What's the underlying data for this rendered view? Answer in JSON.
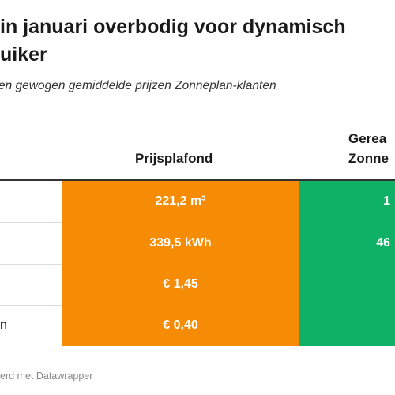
{
  "header": {
    "title": [
      "in januari overbodig voor dynamisch",
      "uiker"
    ],
    "subtitle": "en gewogen gemiddelde prijzen Zonneplan-klanten"
  },
  "table": {
    "columns": [
      "",
      "Prijsplafond",
      [
        "Gerea",
        "Zonne"
      ]
    ],
    "rows": [
      [
        "",
        "221,2 m³",
        "1"
      ],
      [
        "",
        "339,5 kWh",
        "46"
      ],
      [
        "",
        "€ 1,45",
        ""
      ],
      [
        "n",
        "€ 0,40",
        ""
      ]
    ]
  },
  "footer": "erd met Datawrapper"
}
